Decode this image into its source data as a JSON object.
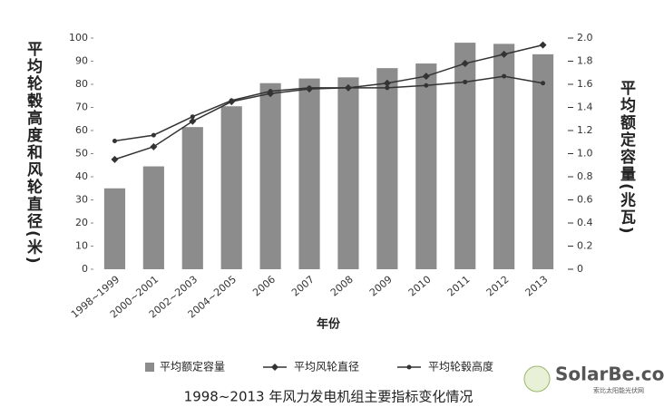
{
  "chart_data": {
    "type": "bar-line",
    "caption": "1998~2013 年风力发电机组主要指标变化情况",
    "x_label": "年份",
    "y_label": "平均轮毂高度和风轮直径(米)",
    "y2_label": "平均额定容量(兆瓦)",
    "categories": [
      "1998~1999",
      "2000~2001",
      "2002~2003",
      "2004~2005",
      "2006",
      "2007",
      "2008",
      "2009",
      "2010",
      "2011",
      "2012",
      "2013"
    ],
    "ylim": [
      0,
      100
    ],
    "yticks": [
      0,
      10,
      20,
      30,
      40,
      50,
      60,
      70,
      80,
      90,
      100
    ],
    "y2lim": [
      0,
      2
    ],
    "y2ticks": [
      0,
      0.2,
      0.4,
      0.6,
      0.8,
      {
        "value": 1,
        "label": "1.0"
      },
      1.2,
      1.4,
      1.6,
      1.8,
      {
        "value": 2,
        "label": "2.0"
      }
    ],
    "grid": false,
    "series": [
      {
        "name": "平均额定容量",
        "type": "bar",
        "axis": "y2",
        "color": "#8c8c8c",
        "values": [
          0.7,
          0.89,
          1.23,
          1.41,
          1.61,
          1.65,
          1.66,
          1.74,
          1.78,
          1.96,
          1.95,
          1.86
        ]
      },
      {
        "name": "平均风轮直径",
        "type": "line",
        "marker": "diamond",
        "color": "#333333",
        "values": [
          47.5,
          53,
          64,
          72.5,
          76,
          78,
          78.5,
          80.5,
          83.5,
          89,
          93,
          97
        ]
      },
      {
        "name": "平均轮毂高度",
        "type": "line",
        "marker": "circle",
        "color": "#333333",
        "values": [
          55.5,
          58,
          66,
          73,
          77,
          78.5,
          78.5,
          78.5,
          79.5,
          81,
          83.5,
          80.5
        ]
      }
    ],
    "watermark": "SolarBe.com",
    "watermark_subtitle": "索比太阳能光伏网"
  }
}
